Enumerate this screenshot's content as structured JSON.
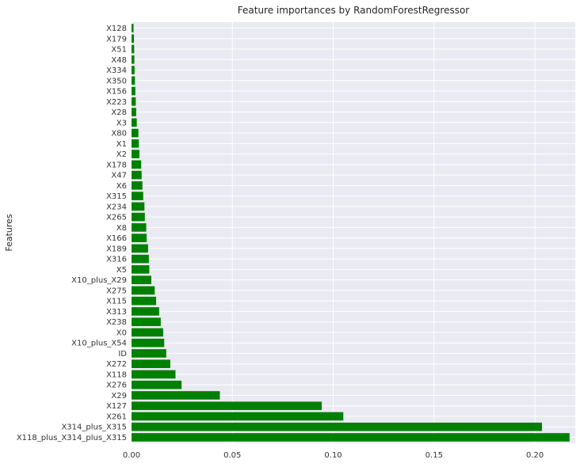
{
  "chart_data": {
    "type": "bar",
    "orientation": "horizontal",
    "title": "Feature importances by RandomForestRegressor",
    "xlabel": "",
    "ylabel": "Features",
    "xlim": [
      0,
      0.22
    ],
    "xticks": [
      "0.00",
      "0.05",
      "0.10",
      "0.15",
      "0.20"
    ],
    "grid": true,
    "legend": "none",
    "colors": {
      "bar": "#008000",
      "plot_background": "#EAEAF2",
      "grid": "#ffffff"
    },
    "categories": [
      "X128",
      "X179",
      "X51",
      "X48",
      "X334",
      "X350",
      "X156",
      "X223",
      "X28",
      "X3",
      "X80",
      "X1",
      "X2",
      "X178",
      "X47",
      "X6",
      "X315",
      "X234",
      "X265",
      "X8",
      "X166",
      "X189",
      "X316",
      "X5",
      "X10_plus_X29",
      "X275",
      "X115",
      "X313",
      "X238",
      "X0",
      "X10_plus_X54",
      "ID",
      "X272",
      "X118",
      "X276",
      "X29",
      "X127",
      "X261",
      "X314_plus_X315",
      "X118_plus_X314_plus_X315"
    ],
    "values": [
      0.001,
      0.0012,
      0.0013,
      0.0014,
      0.0015,
      0.0017,
      0.0019,
      0.0021,
      0.0023,
      0.0026,
      0.0034,
      0.0036,
      0.0039,
      0.0048,
      0.005,
      0.0054,
      0.0058,
      0.0064,
      0.0066,
      0.0073,
      0.0075,
      0.0082,
      0.0086,
      0.0088,
      0.0098,
      0.0115,
      0.0122,
      0.0137,
      0.0145,
      0.0157,
      0.0162,
      0.0172,
      0.0192,
      0.0218,
      0.0248,
      0.0438,
      0.0943,
      0.105,
      0.2035,
      0.2172
    ]
  }
}
